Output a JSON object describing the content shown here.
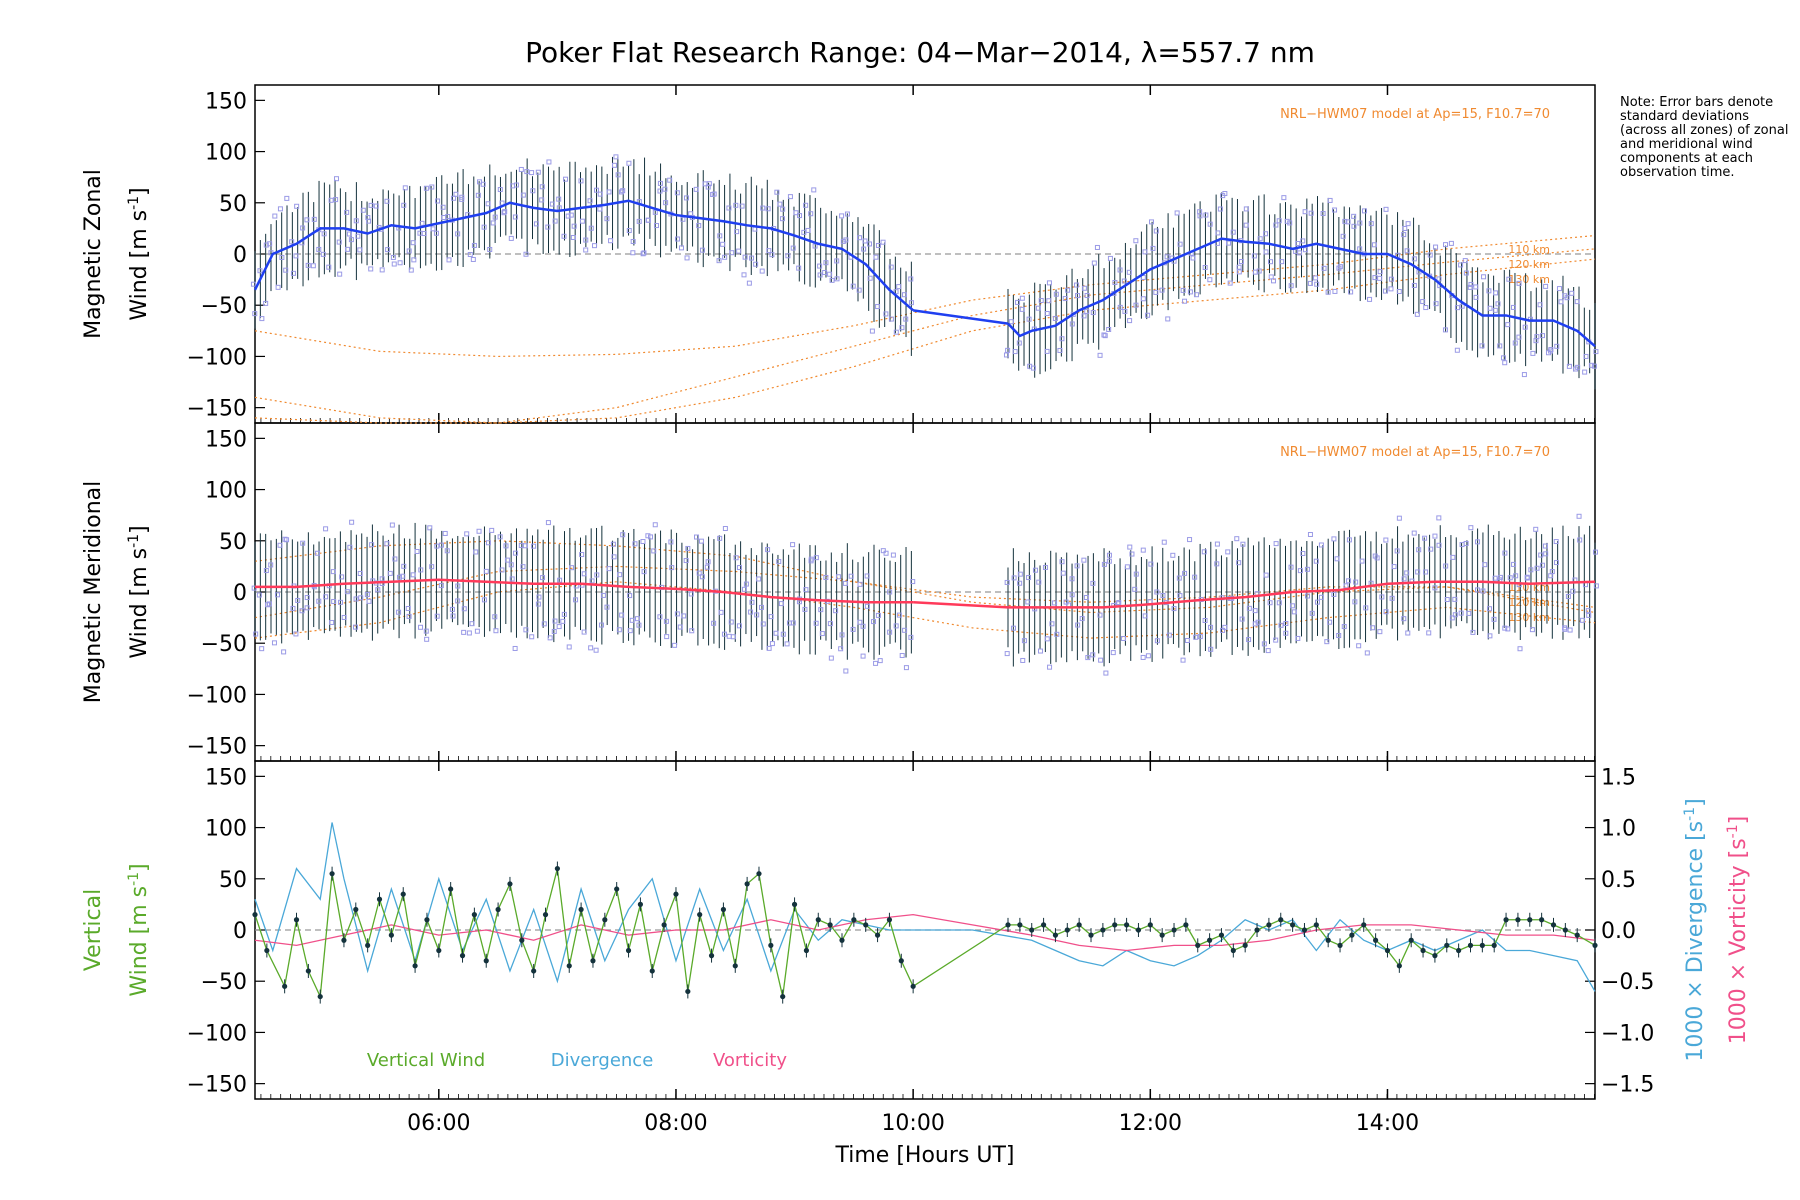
{
  "title": "Poker Flat Research Range: 04−Mar−2014, λ=557.7 nm",
  "note": "Note: Error bars denote standard deviations (across all zones) of zonal and meridional wind components at each observation time.",
  "colors": {
    "zonal": "#1f3ff0",
    "meridional": "#ff3a5a",
    "vertical": "#5aaa2a",
    "divergence": "#4aa8d8",
    "vorticity": "#f0508a",
    "model": "#f08a30",
    "scatter": "#9a9ae6",
    "error": "#14323c"
  },
  "chart_data": [
    {
      "type": "line",
      "ylabel_line1": "Magnetic Zonal",
      "ylabel_line2": "Wind [m s",
      "ylabel_sup": "-1",
      "ylabel_end": "]",
      "model_label": "NRL−HWM07 model at Ap=15, F10.7=70",
      "altitude_labels": [
        "110 km",
        "120 km",
        "130 km"
      ],
      "ylim": [
        -165,
        165
      ],
      "yticks": [
        "150",
        "100",
        "50",
        "0",
        "−50",
        "−100",
        "−150"
      ],
      "series": [
        {
          "role": "mean",
          "x": [
            4.45,
            4.6,
            4.8,
            5.0,
            5.2,
            5.4,
            5.6,
            5.8,
            6.0,
            6.2,
            6.4,
            6.6,
            6.8,
            7.0,
            7.2,
            7.4,
            7.6,
            7.8,
            8.0,
            8.2,
            8.4,
            8.6,
            8.8,
            9.0,
            9.2,
            9.4,
            9.6,
            9.8,
            10.0
          ],
          "y": [
            -35,
            0,
            10,
            25,
            25,
            20,
            28,
            25,
            30,
            35,
            40,
            50,
            45,
            42,
            45,
            48,
            52,
            45,
            38,
            35,
            32,
            28,
            25,
            18,
            10,
            5,
            -10,
            -35,
            -55
          ]
        },
        {
          "role": "mean",
          "x": [
            10.8,
            10.9,
            11.0,
            11.2,
            11.4,
            11.6,
            11.8,
            12.0,
            12.2,
            12.4,
            12.6,
            12.8,
            13.0,
            13.2,
            13.4,
            13.6,
            13.8,
            14.0,
            14.2,
            14.4,
            14.6,
            14.8,
            15.0,
            15.2,
            15.4,
            15.6,
            15.75
          ],
          "y": [
            -68,
            -80,
            -75,
            -70,
            -55,
            -45,
            -30,
            -15,
            -5,
            5,
            15,
            12,
            10,
            5,
            10,
            5,
            0,
            0,
            -10,
            -25,
            -45,
            -60,
            -60,
            -65,
            -65,
            -75,
            -90
          ]
        }
      ],
      "models": [
        {
          "altitude": "110 km",
          "x": [
            4.45,
            5.5,
            6.5,
            7.5,
            8.5,
            9.5,
            10.5,
            11.5,
            12.5,
            13.5,
            14.5,
            15.75
          ],
          "y": [
            -75,
            -95,
            -100,
            -98,
            -90,
            -70,
            -45,
            -30,
            -20,
            -10,
            5,
            18
          ]
        },
        {
          "altitude": "120 km",
          "x": [
            4.45,
            5.5,
            6.5,
            7.5,
            8.5,
            9.5,
            10.5,
            11.5,
            12.5,
            13.5,
            14.5,
            15.75
          ],
          "y": [
            -140,
            -160,
            -165,
            -150,
            -120,
            -90,
            -60,
            -40,
            -30,
            -20,
            -8,
            5
          ]
        },
        {
          "altitude": "130 km",
          "x": [
            4.45,
            5.5,
            6.5,
            7.5,
            8.5,
            9.5,
            10.5,
            11.5,
            12.5,
            13.5,
            14.5,
            15.75
          ],
          "y": [
            -160,
            -165,
            -165,
            -160,
            -140,
            -110,
            -75,
            -55,
            -45,
            -35,
            -20,
            -5
          ]
        }
      ]
    },
    {
      "type": "line",
      "ylabel_line1": "Magnetic Meridional",
      "ylabel_line2": "Wind [m s",
      "ylabel_sup": "-1",
      "ylabel_end": "]",
      "model_label": "NRL−HWM07 model at Ap=15, F10.7=70",
      "altitude_labels": [
        "110 km",
        "120 km",
        "130 km"
      ],
      "ylim": [
        -165,
        165
      ],
      "yticks": [
        "150",
        "100",
        "50",
        "0",
        "−50",
        "−100",
        "−150"
      ],
      "series": [
        {
          "role": "mean",
          "x": [
            4.45,
            4.8,
            5.2,
            5.6,
            6.0,
            6.4,
            6.8,
            7.2,
            7.6,
            8.0,
            8.4,
            8.8,
            9.2,
            9.6,
            10.0
          ],
          "y": [
            5,
            5,
            8,
            10,
            12,
            10,
            8,
            8,
            5,
            3,
            0,
            -5,
            -8,
            -10,
            -10
          ]
        },
        {
          "role": "mean",
          "x": [
            10.8,
            11.2,
            11.6,
            12.0,
            12.4,
            12.8,
            13.2,
            13.6,
            14.0,
            14.4,
            14.8,
            15.2,
            15.75
          ],
          "y": [
            -15,
            -15,
            -15,
            -12,
            -8,
            -5,
            0,
            2,
            8,
            10,
            10,
            8,
            10
          ]
        }
      ],
      "models": [
        {
          "altitude": "110 km",
          "x": [
            4.45,
            5.5,
            6.5,
            7.5,
            8.5,
            9.5,
            10.5,
            11.5,
            12.5,
            13.5,
            14.5,
            15.75
          ],
          "y": [
            -25,
            -5,
            20,
            25,
            20,
            10,
            -5,
            -10,
            -5,
            5,
            5,
            -20
          ]
        },
        {
          "altitude": "120 km",
          "x": [
            4.45,
            5.5,
            6.5,
            7.5,
            8.5,
            9.5,
            10.5,
            11.5,
            12.5,
            13.5,
            14.5,
            15.75
          ],
          "y": [
            -45,
            -30,
            0,
            10,
            0,
            -15,
            -35,
            -45,
            -40,
            -25,
            -15,
            -30
          ]
        },
        {
          "altitude": "130 km",
          "x": [
            4.45,
            5.5,
            6.5,
            7.5,
            8.5,
            9.5,
            10.5,
            11.5,
            12.5,
            13.5,
            14.5,
            15.75
          ],
          "y": [
            30,
            45,
            50,
            45,
            35,
            10,
            -10,
            -20,
            -15,
            0,
            5,
            -15
          ]
        }
      ]
    },
    {
      "type": "line",
      "ylabel_line1": "Vertical",
      "ylabel_line2": "Wind [m s",
      "ylabel_sup": "-1",
      "ylabel_end": "]",
      "ylim": [
        -165,
        165
      ],
      "yticks": [
        "150",
        "100",
        "50",
        "0",
        "−50",
        "−100",
        "−150"
      ],
      "y2lim": [
        -1.65,
        1.65
      ],
      "y2ticks": [
        "1.5",
        "1.0",
        "0.5",
        "0.0",
        "−0.5",
        "−1.0",
        "−1.5"
      ],
      "y2label_div": "1000 × Divergence [s",
      "y2label_vor": "1000 × Vorticity [s",
      "y2label_sup": "-1",
      "y2label_end": "]",
      "xlabel": "Time [Hours UT]",
      "xlim": [
        4.45,
        15.75
      ],
      "xticks": [
        "06:00",
        "08:00",
        "10:00",
        "12:00",
        "14:00"
      ],
      "xtick_values": [
        6,
        8,
        10,
        12,
        14
      ],
      "legend": [
        "Vertical Wind",
        "Divergence",
        "Vorticity"
      ],
      "series": [
        {
          "name": "Vertical Wind",
          "x": [
            4.45,
            4.55,
            4.7,
            4.8,
            4.9,
            5.0,
            5.1,
            5.2,
            5.3,
            5.4,
            5.5,
            5.6,
            5.7,
            5.8,
            5.9,
            6.0,
            6.1,
            6.2,
            6.3,
            6.4,
            6.5,
            6.6,
            6.7,
            6.8,
            6.9,
            7.0,
            7.1,
            7.2,
            7.3,
            7.4,
            7.5,
            7.6,
            7.7,
            7.8,
            7.9,
            8.0,
            8.1,
            8.2,
            8.3,
            8.4,
            8.5,
            8.6,
            8.7,
            8.8,
            8.9,
            9.0,
            9.1,
            9.2,
            9.3,
            9.4,
            9.5,
            9.6,
            9.7,
            9.8,
            9.9,
            10.0,
            10.8,
            10.9,
            11.0,
            11.1,
            11.2,
            11.3,
            11.4,
            11.5,
            11.6,
            11.7,
            11.8,
            11.9,
            12.0,
            12.1,
            12.2,
            12.3,
            12.4,
            12.5,
            12.6,
            12.7,
            12.8,
            12.9,
            13.0,
            13.1,
            13.2,
            13.3,
            13.4,
            13.5,
            13.6,
            13.7,
            13.8,
            13.9,
            14.0,
            14.1,
            14.2,
            14.3,
            14.4,
            14.5,
            14.6,
            14.7,
            14.8,
            14.9,
            15.0,
            15.1,
            15.2,
            15.3,
            15.4,
            15.5,
            15.6,
            15.75
          ],
          "y": [
            15,
            -20,
            -55,
            10,
            -40,
            -65,
            55,
            -10,
            20,
            -15,
            30,
            -5,
            35,
            -35,
            10,
            -20,
            40,
            -25,
            15,
            -30,
            20,
            45,
            -10,
            -40,
            15,
            60,
            -35,
            20,
            -30,
            10,
            40,
            -20,
            25,
            -40,
            5,
            35,
            -60,
            15,
            -25,
            20,
            -35,
            45,
            55,
            -15,
            -65,
            25,
            -20,
            10,
            5,
            -10,
            10,
            5,
            -5,
            10,
            -30,
            -55,
            5,
            5,
            0,
            5,
            -5,
            0,
            5,
            -5,
            0,
            5,
            5,
            0,
            5,
            -5,
            0,
            5,
            -15,
            -10,
            -5,
            -20,
            -15,
            0,
            5,
            10,
            5,
            0,
            5,
            -10,
            -15,
            -5,
            5,
            -10,
            -20,
            -35,
            -10,
            -20,
            -25,
            -15,
            -20,
            -15,
            -15,
            -15,
            10,
            10,
            10,
            10,
            5,
            0,
            -5,
            -15
          ]
        },
        {
          "name": "Divergence",
          "x": [
            4.45,
            4.6,
            4.8,
            5.0,
            5.1,
            5.2,
            5.4,
            5.6,
            5.8,
            6.0,
            6.2,
            6.4,
            6.6,
            6.8,
            7.0,
            7.2,
            7.4,
            7.6,
            7.8,
            8.0,
            8.2,
            8.4,
            8.6,
            8.8,
            9.0,
            9.2,
            9.4,
            9.6,
            9.8,
            10.0,
            10.5,
            11.0,
            11.2,
            11.4,
            11.6,
            11.8,
            12.0,
            12.2,
            12.4,
            12.6,
            12.8,
            13.0,
            13.2,
            13.4,
            13.6,
            13.8,
            14.0,
            14.2,
            14.4,
            14.6,
            14.8,
            15.0,
            15.2,
            15.4,
            15.6,
            15.75
          ],
          "y": [
            0.3,
            -0.2,
            0.6,
            0.3,
            1.05,
            0.5,
            -0.4,
            0.4,
            -0.3,
            0.5,
            -0.2,
            0.3,
            -0.4,
            0.2,
            -0.5,
            0.4,
            -0.3,
            0.2,
            0.5,
            -0.3,
            0.4,
            -0.2,
            0.3,
            -0.4,
            0.2,
            -0.1,
            0.1,
            0.05,
            0.0,
            0.0,
            0.0,
            -0.1,
            -0.2,
            -0.3,
            -0.35,
            -0.2,
            -0.3,
            -0.35,
            -0.25,
            -0.1,
            0.1,
            0.0,
            0.1,
            -0.2,
            0.1,
            -0.1,
            -0.2,
            -0.1,
            -0.2,
            -0.1,
            0.0,
            -0.2,
            -0.2,
            -0.25,
            -0.3,
            -0.6
          ]
        },
        {
          "name": "Vorticity",
          "x": [
            4.45,
            4.8,
            5.2,
            5.6,
            6.0,
            6.4,
            6.8,
            7.2,
            7.6,
            8.0,
            8.4,
            8.8,
            9.2,
            9.6,
            10.0,
            10.5,
            11.0,
            11.4,
            11.8,
            12.2,
            12.6,
            13.0,
            13.4,
            13.8,
            14.2,
            14.6,
            15.0,
            15.4,
            15.75
          ],
          "y": [
            -0.1,
            -0.15,
            -0.05,
            0.05,
            -0.05,
            0.0,
            -0.1,
            0.05,
            -0.05,
            0.0,
            0.0,
            0.1,
            0.0,
            0.1,
            0.15,
            0.05,
            -0.05,
            -0.15,
            -0.2,
            -0.15,
            -0.15,
            -0.1,
            0.0,
            0.05,
            0.05,
            0.0,
            -0.05,
            -0.05,
            -0.1
          ]
        }
      ]
    }
  ]
}
